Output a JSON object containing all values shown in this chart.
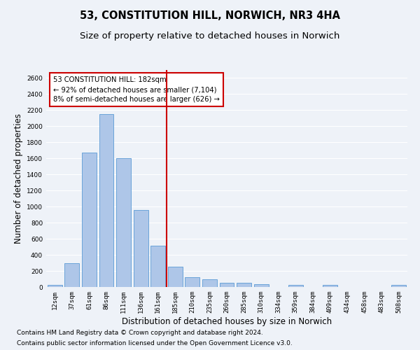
{
  "title": "53, CONSTITUTION HILL, NORWICH, NR3 4HA",
  "subtitle": "Size of property relative to detached houses in Norwich",
  "xlabel": "Distribution of detached houses by size in Norwich",
  "ylabel": "Number of detached properties",
  "footnote1": "Contains HM Land Registry data © Crown copyright and database right 2024.",
  "footnote2": "Contains public sector information licensed under the Open Government Licence v3.0.",
  "bar_labels": [
    "12sqm",
    "37sqm",
    "61sqm",
    "86sqm",
    "111sqm",
    "136sqm",
    "161sqm",
    "185sqm",
    "210sqm",
    "235sqm",
    "260sqm",
    "285sqm",
    "310sqm",
    "334sqm",
    "359sqm",
    "384sqm",
    "409sqm",
    "434sqm",
    "458sqm",
    "483sqm",
    "508sqm"
  ],
  "bar_values": [
    25,
    300,
    1670,
    2150,
    1600,
    960,
    510,
    250,
    125,
    100,
    50,
    50,
    35,
    0,
    30,
    0,
    25,
    0,
    0,
    0,
    25
  ],
  "bar_color": "#aec6e8",
  "bar_edge_color": "#5b9bd5",
  "vline_x_index": 7,
  "vline_color": "#cc0000",
  "annotation_text": "53 CONSTITUTION HILL: 182sqm\n← 92% of detached houses are smaller (7,104)\n8% of semi-detached houses are larger (626) →",
  "annotation_box_color": "#cc0000",
  "annotation_text_color": "#000000",
  "ylim": [
    0,
    2700
  ],
  "yticks": [
    0,
    200,
    400,
    600,
    800,
    1000,
    1200,
    1400,
    1600,
    1800,
    2000,
    2200,
    2400,
    2600
  ],
  "bg_color": "#eef2f8",
  "plot_bg_color": "#eef2f8",
  "grid_color": "#ffffff",
  "title_fontsize": 10.5,
  "subtitle_fontsize": 9.5,
  "label_fontsize": 8.5,
  "tick_fontsize": 6.5,
  "footnote_fontsize": 6.5
}
